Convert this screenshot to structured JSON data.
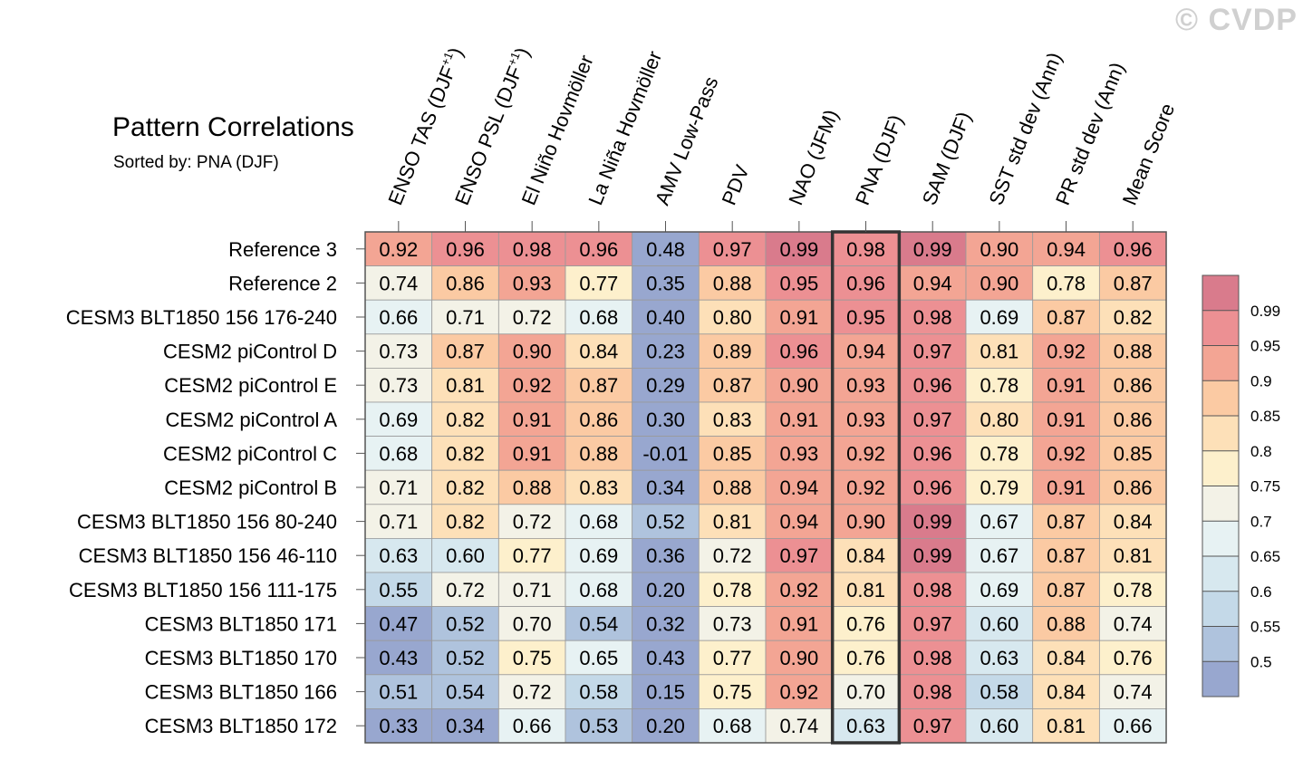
{
  "watermark": "© CVDP",
  "chart_data": {
    "type": "heatmap",
    "title": "Pattern Correlations",
    "subtitle": "Sorted by: PNA (DJF)",
    "columns": [
      "ENSO TAS (DJF+1)",
      "ENSO PSL (DJF+1)",
      "El Niño Hovmöller",
      "La Niña Hovmöller",
      "AMV Low-Pass",
      "PDV",
      "NAO (JFM)",
      "PNA (DJF)",
      "SAM (DJF)",
      "SST std dev (Ann)",
      "PR std dev (Ann)",
      "Mean Score"
    ],
    "highlighted_column": "PNA (DJF)",
    "rows": [
      "Reference 3",
      "Reference 2",
      "CESM3 BLT1850 156 176-240",
      "CESM2 piControl D",
      "CESM2 piControl E",
      "CESM2 piControl A",
      "CESM2 piControl C",
      "CESM2 piControl B",
      "CESM3 BLT1850 156 80-240",
      "CESM3 BLT1850 156 46-110",
      "CESM3 BLT1850 156 111-175",
      "CESM3 BLT1850 171",
      "CESM3 BLT1850 170",
      "CESM3 BLT1850 166",
      "CESM3 BLT1850 172"
    ],
    "values": [
      [
        "0.92",
        "0.96",
        "0.98",
        "0.96",
        "0.48",
        "0.97",
        "0.99",
        "0.98",
        "0.99",
        "0.90",
        "0.94",
        "0.96"
      ],
      [
        "0.74",
        "0.86",
        "0.93",
        "0.77",
        "0.35",
        "0.88",
        "0.95",
        "0.96",
        "0.94",
        "0.90",
        "0.78",
        "0.87"
      ],
      [
        "0.66",
        "0.71",
        "0.72",
        "0.68",
        "0.40",
        "0.80",
        "0.91",
        "0.95",
        "0.98",
        "0.69",
        "0.87",
        "0.82"
      ],
      [
        "0.73",
        "0.87",
        "0.90",
        "0.84",
        "0.23",
        "0.89",
        "0.96",
        "0.94",
        "0.97",
        "0.81",
        "0.92",
        "0.88"
      ],
      [
        "0.73",
        "0.81",
        "0.92",
        "0.87",
        "0.29",
        "0.87",
        "0.90",
        "0.93",
        "0.96",
        "0.78",
        "0.91",
        "0.86"
      ],
      [
        "0.69",
        "0.82",
        "0.91",
        "0.86",
        "0.30",
        "0.83",
        "0.91",
        "0.93",
        "0.97",
        "0.80",
        "0.91",
        "0.86"
      ],
      [
        "0.68",
        "0.82",
        "0.91",
        "0.88",
        "-0.01",
        "0.85",
        "0.93",
        "0.92",
        "0.96",
        "0.78",
        "0.92",
        "0.85"
      ],
      [
        "0.71",
        "0.82",
        "0.88",
        "0.83",
        "0.34",
        "0.88",
        "0.94",
        "0.92",
        "0.96",
        "0.79",
        "0.91",
        "0.86"
      ],
      [
        "0.71",
        "0.82",
        "0.72",
        "0.68",
        "0.52",
        "0.81",
        "0.94",
        "0.90",
        "0.99",
        "0.67",
        "0.87",
        "0.84"
      ],
      [
        "0.63",
        "0.60",
        "0.77",
        "0.69",
        "0.36",
        "0.72",
        "0.97",
        "0.84",
        "0.99",
        "0.67",
        "0.87",
        "0.81"
      ],
      [
        "0.55",
        "0.72",
        "0.71",
        "0.68",
        "0.20",
        "0.78",
        "0.92",
        "0.81",
        "0.98",
        "0.69",
        "0.87",
        "0.78"
      ],
      [
        "0.47",
        "0.52",
        "0.70",
        "0.54",
        "0.32",
        "0.73",
        "0.91",
        "0.76",
        "0.97",
        "0.60",
        "0.88",
        "0.74"
      ],
      [
        "0.43",
        "0.52",
        "0.75",
        "0.65",
        "0.43",
        "0.77",
        "0.90",
        "0.76",
        "0.98",
        "0.63",
        "0.84",
        "0.76"
      ],
      [
        "0.51",
        "0.54",
        "0.72",
        "0.58",
        "0.15",
        "0.75",
        "0.92",
        "0.70",
        "0.98",
        "0.58",
        "0.84",
        "0.74"
      ],
      [
        "0.33",
        "0.34",
        "0.66",
        "0.53",
        "0.20",
        "0.68",
        "0.74",
        "0.63",
        "0.97",
        "0.60",
        "0.81",
        "0.66"
      ]
    ],
    "colorbar": {
      "levels": [
        "0.5",
        "0.55",
        "0.6",
        "0.65",
        "0.7",
        "0.75",
        "0.8",
        "0.85",
        "0.9",
        "0.95",
        "0.99"
      ],
      "colors": [
        "#98a7cf",
        "#afc3dd",
        "#c4d9e8",
        "#d7e8ef",
        "#e7f2f3",
        "#f3f2e7",
        "#fdf0cc",
        "#fde0b8",
        "#fbcaa3",
        "#f3a594",
        "#ec9093",
        "#d97b8c"
      ]
    }
  }
}
